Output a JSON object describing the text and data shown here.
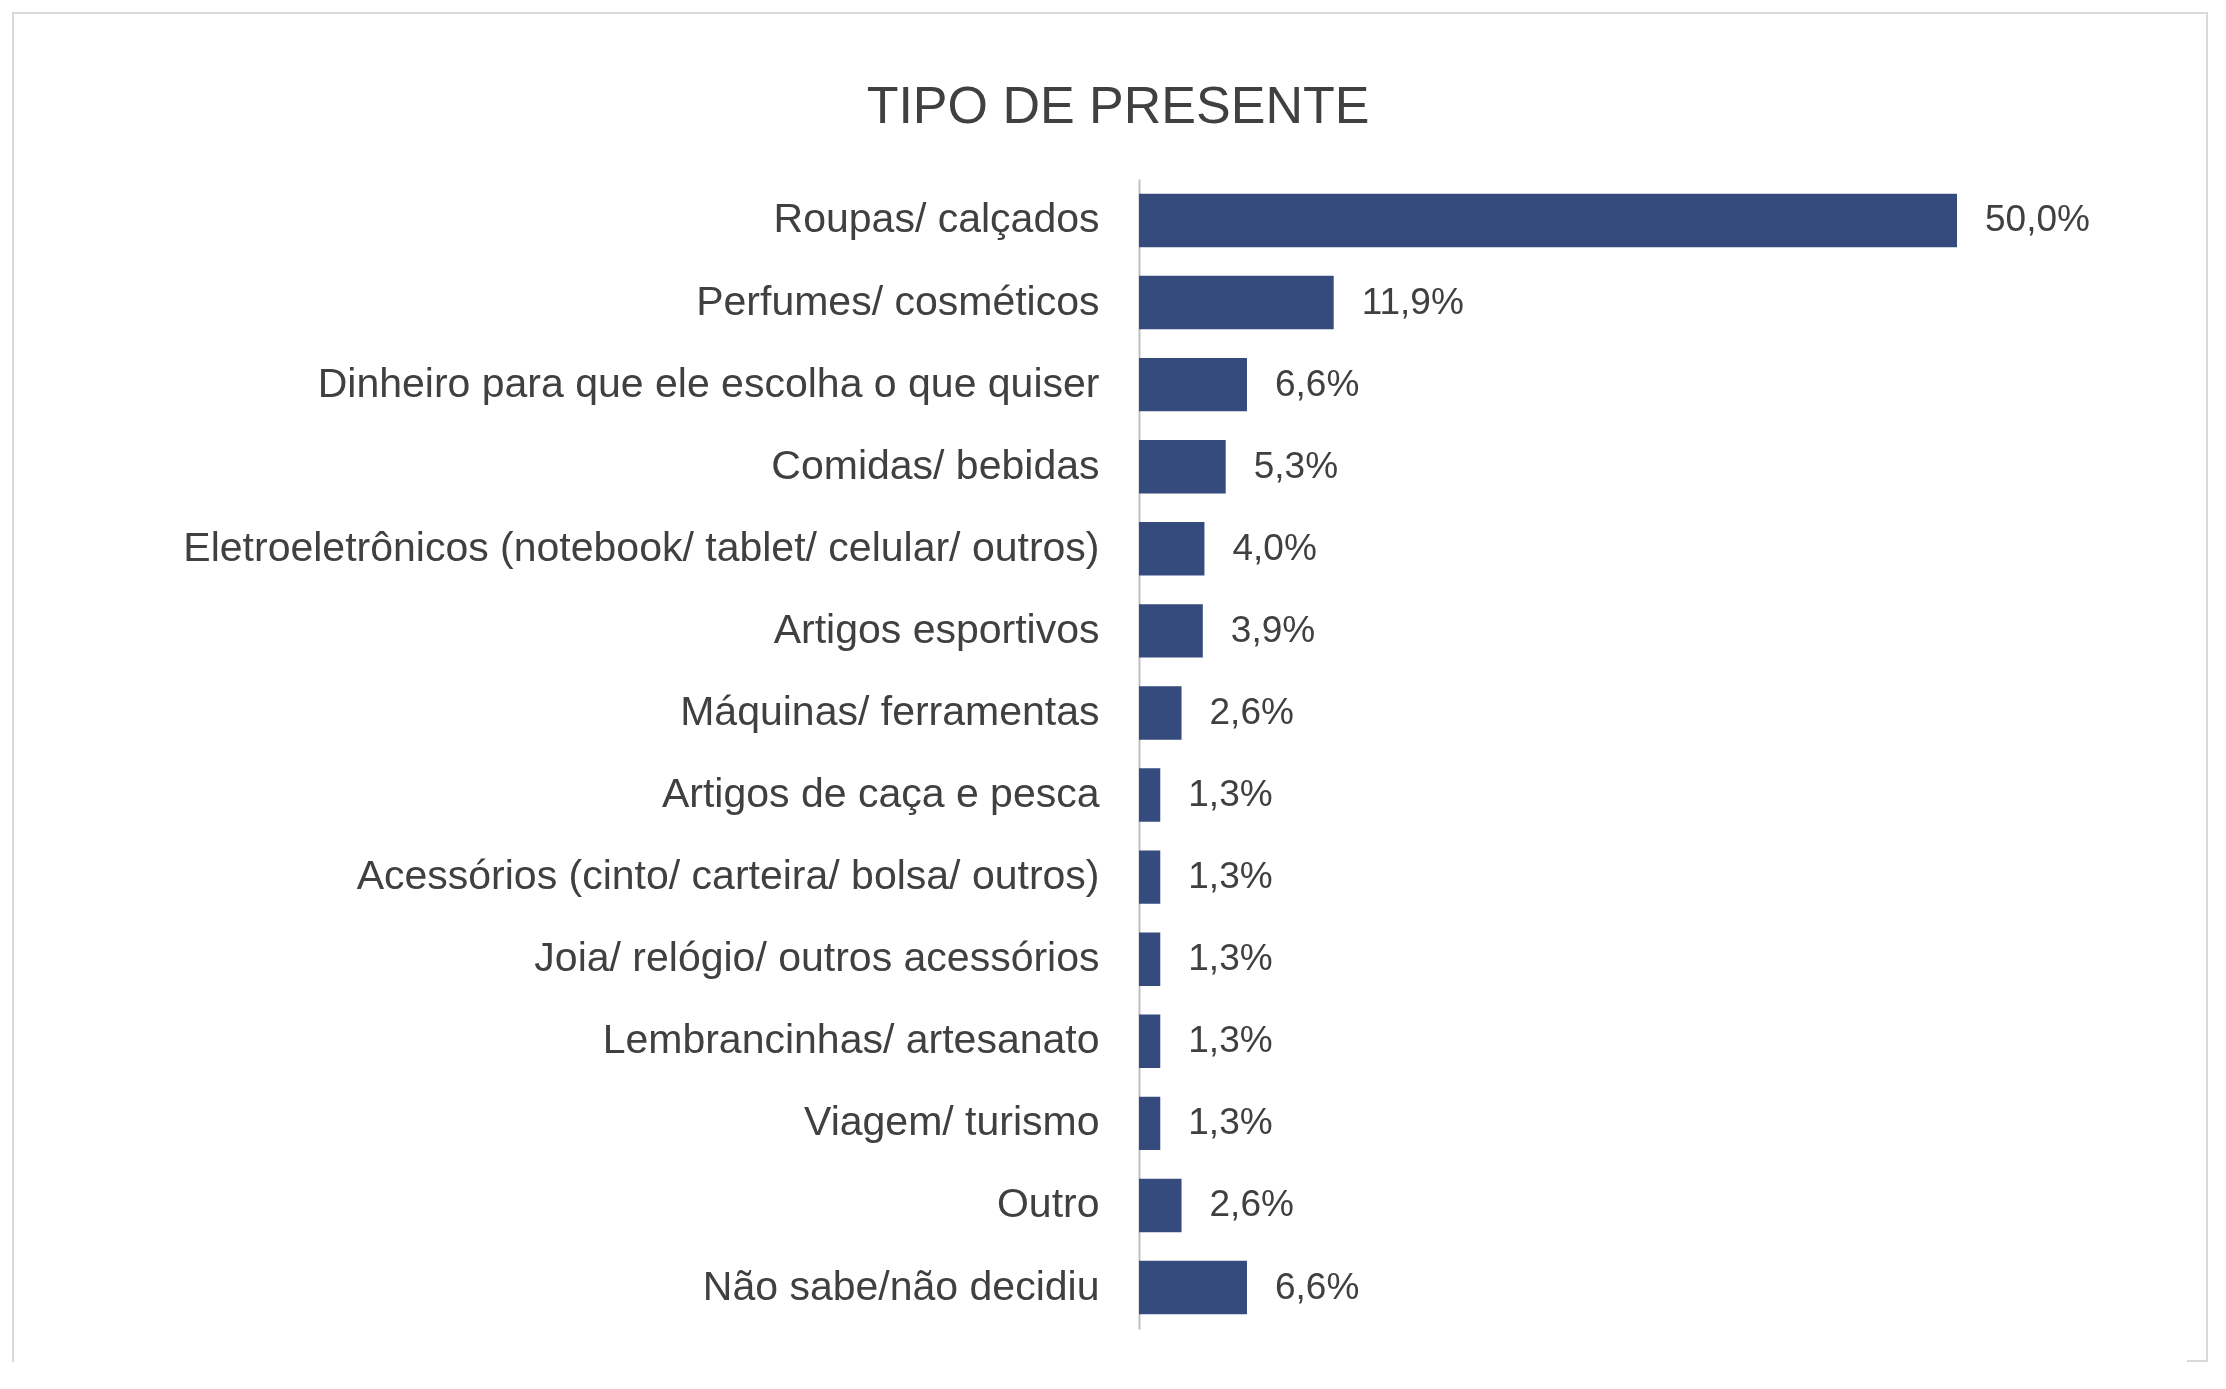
{
  "chart_data": {
    "type": "bar",
    "orientation": "horizontal",
    "title": "TIPO DE PRESENTE",
    "categories": [
      "Roupas/ calçados",
      "Perfumes/ cosméticos",
      "Dinheiro para que ele escolha o que quiser",
      "Comidas/ bebidas",
      "Eletroeletrônicos (notebook/ tablet/ celular/ outros)",
      "Artigos esportivos",
      "Máquinas/ ferramentas",
      "Artigos de caça e pesca",
      "Acessórios (cinto/ carteira/ bolsa/ outros)",
      "Joia/ relógio/ outros acessórios",
      "Lembrancinhas/ artesanato",
      "Viagem/ turismo",
      "Outro",
      "Não sabe/não decidiu"
    ],
    "values": [
      50.0,
      11.9,
      6.6,
      5.3,
      4.0,
      3.9,
      2.6,
      1.3,
      1.3,
      1.3,
      1.3,
      1.3,
      2.6,
      6.6
    ],
    "value_labels": [
      "50,0%",
      "11,9%",
      "6,6%",
      "5,3%",
      "4,0%",
      "3,9%",
      "2,6%",
      "1,3%",
      "1,3%",
      "1,3%",
      "1,3%",
      "1,3%",
      "2,6%",
      "6,6%"
    ],
    "color": "#354b7e",
    "grid": false
  }
}
